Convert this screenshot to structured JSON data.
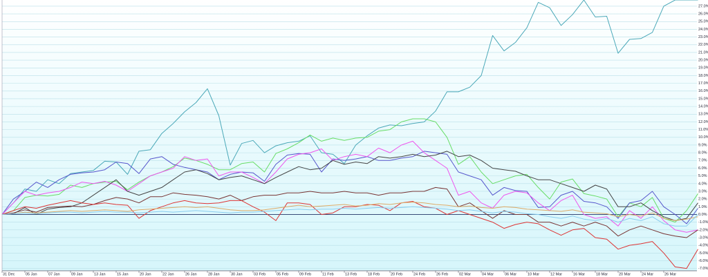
{
  "chart_data": {
    "type": "line",
    "categories": [
      "31 Dec",
      null,
      "05 Jan",
      null,
      "07 Jan",
      null,
      "09 Jan",
      null,
      "13 Jan",
      null,
      "15 Jan",
      null,
      "20 Jan",
      null,
      "22 Jan",
      null,
      "26 Jan",
      null,
      "28 Jan",
      null,
      "30 Jan",
      null,
      "03 Feb",
      null,
      "05 Feb",
      null,
      "09 Feb",
      null,
      "11 Feb",
      null,
      "13 Feb",
      null,
      "18 Feb",
      null,
      "20 Feb",
      null,
      "24 Feb",
      null,
      "26 Feb",
      null,
      "02 Mar",
      null,
      "04 Mar",
      null,
      "06 Mar",
      null,
      "10 Mar",
      null,
      "12 Mar",
      null,
      "16 Mar",
      null,
      "18 Mar",
      null,
      "20 Mar",
      null,
      "24 Mar",
      null,
      "26 Mar",
      null,
      null,
      null
    ],
    "ylim": [
      -7.3,
      27.8
    ],
    "yticks": [
      {
        "value": -7,
        "label": "-7.0%"
      },
      {
        "value": -6,
        "label": "-6.0%"
      },
      {
        "value": -5,
        "label": "-5.0%"
      },
      {
        "value": -4,
        "label": "-4.0%"
      },
      {
        "value": -3,
        "label": "-3.0%"
      },
      {
        "value": -2,
        "label": "-2.0%"
      },
      {
        "value": -1,
        "label": "-1.0%"
      },
      {
        "value": 0,
        "label": "0.0%"
      },
      {
        "value": 1,
        "label": "1.0%"
      },
      {
        "value": 2,
        "label": "2.0%"
      },
      {
        "value": 3,
        "label": "3.0%"
      },
      {
        "value": 4,
        "label": "4.0%"
      },
      {
        "value": 5,
        "label": "5.0%"
      },
      {
        "value": 6,
        "label": "6.0%"
      },
      {
        "value": 7,
        "label": "7.0%"
      },
      {
        "value": 8,
        "label": "8.0%"
      },
      {
        "value": 9,
        "label": "9.0%"
      },
      {
        "value": 10,
        "label": "10.0%"
      },
      {
        "value": 11,
        "label": "11.0%"
      },
      {
        "value": 12,
        "label": "12.0%"
      },
      {
        "value": 13,
        "label": "13.0%"
      },
      {
        "value": 14,
        "label": "14.0%"
      },
      {
        "value": 15,
        "label": "15.0%"
      },
      {
        "value": 16,
        "label": "16.0%"
      },
      {
        "value": 17,
        "label": "17.0%"
      },
      {
        "value": 18,
        "label": "18.0%"
      },
      {
        "value": 19,
        "label": "19.0%"
      },
      {
        "value": 20,
        "label": "20.0%"
      },
      {
        "value": 21,
        "label": "21.0%"
      },
      {
        "value": 22,
        "label": "22.0%"
      },
      {
        "value": 23,
        "label": "23.0%"
      },
      {
        "value": 24,
        "label": "24.0%"
      },
      {
        "value": 25,
        "label": "25.0%"
      },
      {
        "value": 26,
        "label": "26.0%"
      },
      {
        "value": 27,
        "label": "27.0%"
      }
    ],
    "grid": true,
    "series": [
      {
        "color": "#4aa8b8",
        "values": [
          0,
          1.5,
          3.3,
          3.0,
          4.5,
          4.0,
          5.3,
          5.5,
          5.7,
          6.9,
          6.8,
          5.2,
          8.2,
          8.4,
          10.5,
          11.8,
          13.3,
          14.5,
          16.3,
          12.8,
          6.4,
          9.2,
          9.6,
          8.0,
          8.9,
          9.3,
          9.5,
          10.2,
          8.0,
          7.8,
          6.6,
          9.0,
          10.2,
          11.2,
          11.6,
          11.5,
          11.8,
          12.0,
          13.4,
          15.9,
          15.9,
          16.5,
          18.0,
          23.2,
          21.2,
          22.3,
          24.2,
          27.5,
          26.8,
          24.5,
          25.9,
          27.8,
          25.6,
          25.7,
          20.9,
          22.7,
          22.8,
          23.6,
          27.0,
          27.8,
          27.8,
          27.8
        ]
      },
      {
        "color": "#66dd66",
        "values": [
          0,
          0.5,
          2.2,
          2.5,
          2.4,
          2.6,
          3.8,
          3.5,
          4.0,
          4.2,
          4.3,
          3.2,
          4.2,
          5.0,
          5.5,
          6.2,
          7.3,
          7.0,
          6.5,
          5.8,
          5.8,
          6.6,
          6.8,
          5.5,
          7.9,
          8.5,
          9.3,
          10.3,
          9.5,
          9.9,
          9.6,
          9.9,
          10.0,
          10.8,
          11.0,
          12.0,
          12.4,
          12.4,
          12.0,
          10.0,
          6.5,
          7.5,
          5.5,
          4.0,
          4.5,
          5.0,
          5.2,
          3.5,
          2.0,
          4.2,
          4.6,
          2.7,
          2.4,
          2.0,
          -0.3,
          1.5,
          1.0,
          2.2,
          -0.5,
          -1.0,
          0.5,
          2.7
        ]
      },
      {
        "color": "#5555cc",
        "values": [
          0,
          2.0,
          3.0,
          4.2,
          3.5,
          4.5,
          5.2,
          5.4,
          5.5,
          5.8,
          6.8,
          6.6,
          5.3,
          7.2,
          7.5,
          6.5,
          6.1,
          5.8,
          5.5,
          4.5,
          5.2,
          5.5,
          5.4,
          4.3,
          6.5,
          7.7,
          7.9,
          7.8,
          5.5,
          7.2,
          7.0,
          7.2,
          7.5,
          7.0,
          7.0,
          7.3,
          7.5,
          8.2,
          8.0,
          7.8,
          5.5,
          5.0,
          4.5,
          2.5,
          3.5,
          3.1,
          3.0,
          0.9,
          1.0,
          2.5,
          3.0,
          1.7,
          1.5,
          1.0,
          -0.5,
          1.5,
          1.8,
          3.0,
          1.0,
          0.0,
          -1.2,
          0.8
        ]
      },
      {
        "color": "#ee55ee",
        "values": [
          0,
          1.5,
          3.0,
          2.5,
          2.8,
          3.0,
          3.5,
          4.2,
          4.0,
          4.3,
          3.8,
          3.0,
          4.0,
          5.0,
          5.5,
          6.0,
          7.5,
          7.0,
          7.2,
          5.0,
          5.5,
          5.5,
          4.8,
          4.0,
          5.5,
          7.2,
          7.8,
          8.0,
          8.5,
          7.0,
          7.5,
          7.8,
          7.5,
          8.6,
          8.0,
          9.0,
          9.5,
          8.0,
          7.0,
          6.0,
          2.5,
          3.0,
          1.5,
          0.8,
          2.5,
          3.0,
          2.8,
          1.5,
          0.5,
          1.8,
          2.5,
          0.0,
          -0.5,
          -0.3,
          -1.5,
          0.5,
          -0.5,
          1.0,
          -0.8,
          -2.0,
          -2.3,
          -2.0
        ]
      },
      {
        "color": "#444444",
        "values": [
          0,
          0.1,
          0.9,
          0.0,
          0.7,
          0.9,
          1.0,
          1.5,
          2.5,
          3.5,
          4.5,
          3.0,
          2.5,
          3.0,
          3.5,
          4.5,
          5.5,
          5.8,
          5.3,
          4.5,
          4.8,
          5.0,
          4.5,
          4.0,
          4.8,
          5.5,
          6.2,
          5.8,
          6.0,
          7.0,
          6.5,
          6.8,
          6.6,
          7.5,
          7.3,
          7.5,
          7.8,
          7.5,
          7.7,
          8.2,
          7.5,
          7.7,
          7.0,
          6.0,
          5.8,
          5.6,
          5.0,
          4.5,
          4.5,
          4.0,
          3.5,
          3.0,
          3.8,
          3.3,
          1.0,
          1.0,
          1.5,
          0.5,
          -0.3,
          -0.8,
          -0.5,
          1.5
        ]
      },
      {
        "color": "#773333",
        "values": [
          0,
          0.2,
          0.6,
          0.3,
          0.9,
          1.0,
          1.1,
          1.0,
          1.3,
          1.8,
          2.2,
          2.0,
          1.5,
          2.3,
          2.3,
          2.8,
          2.6,
          2.5,
          2.3,
          2.0,
          2.5,
          1.8,
          2.3,
          2.5,
          2.5,
          2.8,
          2.8,
          3.0,
          2.8,
          2.8,
          3.0,
          2.8,
          2.8,
          2.5,
          2.8,
          2.8,
          3.0,
          3.0,
          3.5,
          3.3,
          1.0,
          1.5,
          0.5,
          -0.5,
          0.5,
          0.0,
          0.0,
          -1.0,
          -1.0,
          -1.5,
          -1.0,
          -1.5,
          -1.0,
          -1.5,
          -2.8,
          -2.0,
          -1.5,
          -2.0,
          -2.5,
          -2.8,
          -3.0,
          -2.0
        ]
      },
      {
        "color": "#dd3333",
        "values": [
          0,
          0.5,
          1.0,
          0.8,
          1.2,
          1.5,
          1.8,
          1.5,
          1.3,
          1.5,
          1.3,
          1.2,
          -0.5,
          0.5,
          1.0,
          1.5,
          1.8,
          1.5,
          1.4,
          1.5,
          1.8,
          1.8,
          1.0,
          0.3,
          -0.8,
          1.5,
          1.5,
          1.3,
          0.0,
          0.2,
          1.0,
          1.0,
          1.3,
          1.2,
          0.5,
          1.5,
          1.7,
          1.0,
          0.8,
          0.0,
          0.5,
          0.0,
          -0.5,
          -1.0,
          -1.8,
          -1.3,
          -1.0,
          -1.2,
          -2.0,
          -2.7,
          -2.0,
          -1.8,
          -3.0,
          -3.2,
          -4.5,
          -4.0,
          -3.8,
          -3.5,
          -5.0,
          -6.8,
          -7.0,
          -4.5
        ]
      },
      {
        "color": "#ddaa66",
        "values": [
          0,
          0.1,
          0.3,
          0.2,
          0.3,
          0.4,
          0.5,
          0.4,
          0.5,
          0.6,
          0.5,
          0.4,
          0.6,
          0.7,
          0.8,
          0.9,
          1.0,
          0.9,
          1.0,
          0.8,
          0.6,
          0.5,
          0.5,
          0.6,
          0.8,
          1.0,
          1.2,
          1.0,
          1.1,
          1.2,
          1.3,
          1.1,
          1.2,
          1.4,
          1.3,
          1.5,
          1.6,
          1.5,
          1.3,
          1.2,
          1.0,
          1.1,
          0.9,
          0.8,
          1.0,
          0.9,
          0.7,
          0.6,
          0.5,
          0.4,
          0.6,
          0.3,
          0.2,
          0.1,
          -0.3,
          0.0,
          -0.2,
          0.2,
          -0.5,
          -0.8,
          -0.6,
          -0.3
        ]
      },
      {
        "color": "#88ccee",
        "values": [
          0,
          0.1,
          0.2,
          0.1,
          0.2,
          0.3,
          0.3,
          0.2,
          0.3,
          0.4,
          0.3,
          0.3,
          0.2,
          0.3,
          0.4,
          0.3,
          0.4,
          0.5,
          0.4,
          0.3,
          0.2,
          0.3,
          0.3,
          0.4,
          0.5,
          0.6,
          0.7,
          0.6,
          0.7,
          0.7,
          0.8,
          0.7,
          0.8,
          0.9,
          0.8,
          0.9,
          1.0,
          0.9,
          0.8,
          0.7,
          0.5,
          0.6,
          0.4,
          0.2,
          0.4,
          0.3,
          0.1,
          0.0,
          -0.3,
          -0.5,
          -0.2,
          -0.6,
          -0.8,
          -0.5,
          -1.0,
          -0.5,
          -0.8,
          -0.3,
          -1.2,
          -1.5,
          -1.5,
          0.0
        ]
      }
    ]
  }
}
